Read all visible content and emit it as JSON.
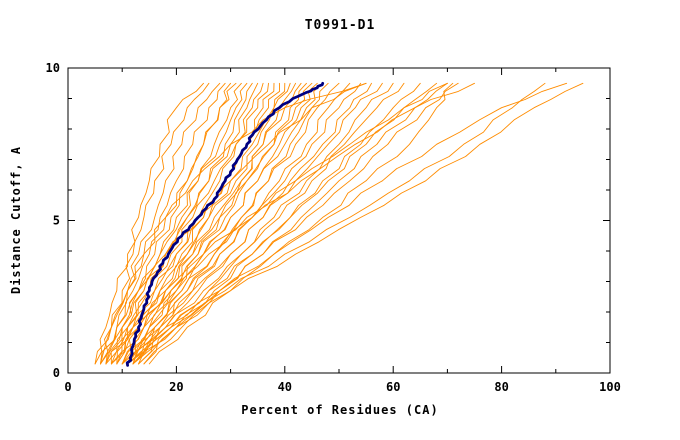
{
  "chart_data": {
    "type": "line",
    "title": "T0991-D1",
    "xlabel": "Percent of Residues (CA)",
    "ylabel": "Distance Cutoff, A",
    "xlim": [
      0,
      100
    ],
    "ylim": [
      0,
      10
    ],
    "x_ticks": [
      0,
      20,
      40,
      60,
      80,
      100
    ],
    "y_ticks": [
      0,
      5,
      10
    ],
    "x_minor_step": 10,
    "y_minor_step": 1,
    "grid": false,
    "legend": "none",
    "colors": {
      "predictions": "#ff8c00",
      "highlight": "#000080",
      "frame": "#000000"
    },
    "series_meaning": {
      "orange": "prediction cumulative GDT curves",
      "navy": "highlighted model curve"
    },
    "y_levels": [
      0.3,
      1.5,
      2.7,
      3.9,
      5.1,
      6.3,
      7.5,
      8.7,
      9.5
    ],
    "orange_series_x": [
      [
        6,
        8,
        10,
        12,
        14,
        16,
        19,
        22,
        26
      ],
      [
        7,
        9,
        11,
        13,
        16,
        18,
        21,
        24,
        28
      ],
      [
        5,
        8,
        11,
        14,
        17,
        20,
        23,
        26,
        29
      ],
      [
        8,
        10,
        13,
        16,
        19,
        22,
        25,
        28,
        30
      ],
      [
        6,
        9,
        12,
        15,
        18,
        22,
        25,
        28,
        31
      ],
      [
        9,
        11,
        14,
        17,
        20,
        24,
        27,
        30,
        32
      ],
      [
        7,
        10,
        13,
        17,
        21,
        24,
        28,
        31,
        33
      ],
      [
        8,
        11,
        15,
        18,
        22,
        26,
        29,
        32,
        34
      ],
      [
        6,
        10,
        14,
        18,
        22,
        26,
        30,
        33,
        35
      ],
      [
        9,
        12,
        16,
        20,
        24,
        28,
        31,
        34,
        36
      ],
      [
        7,
        11,
        15,
        19,
        23,
        27,
        31,
        35,
        37
      ],
      [
        10,
        13,
        17,
        21,
        25,
        29,
        33,
        36,
        38
      ],
      [
        8,
        12,
        16,
        20,
        25,
        29,
        33,
        37,
        39
      ],
      [
        11,
        14,
        18,
        22,
        26,
        30,
        34,
        38,
        40
      ],
      [
        9,
        13,
        17,
        22,
        26,
        31,
        35,
        38,
        41
      ],
      [
        12,
        15,
        19,
        23,
        28,
        32,
        36,
        39,
        42
      ],
      [
        10,
        14,
        18,
        23,
        27,
        32,
        36,
        40,
        43
      ],
      [
        11,
        15,
        20,
        24,
        29,
        33,
        38,
        41,
        44
      ],
      [
        9,
        14,
        19,
        24,
        28,
        33,
        38,
        42,
        45
      ],
      [
        12,
        16,
        21,
        25,
        30,
        35,
        39,
        43,
        46
      ],
      [
        10,
        15,
        20,
        25,
        30,
        35,
        40,
        44,
        47
      ],
      [
        13,
        17,
        22,
        27,
        32,
        37,
        41,
        45,
        48
      ],
      [
        11,
        16,
        21,
        27,
        32,
        37,
        42,
        46,
        50
      ],
      [
        12,
        17,
        23,
        28,
        34,
        39,
        44,
        48,
        52
      ],
      [
        10,
        16,
        22,
        28,
        34,
        40,
        45,
        50,
        54
      ],
      [
        13,
        18,
        24,
        30,
        36,
        41,
        47,
        52,
        56
      ],
      [
        11,
        17,
        23,
        30,
        36,
        42,
        48,
        53,
        58
      ],
      [
        14,
        19,
        26,
        32,
        38,
        44,
        50,
        55,
        60
      ],
      [
        12,
        18,
        25,
        32,
        39,
        45,
        51,
        57,
        62
      ],
      [
        13,
        20,
        27,
        34,
        41,
        47,
        54,
        60,
        65
      ],
      [
        11,
        19,
        26,
        34,
        41,
        48,
        55,
        62,
        68
      ],
      [
        14,
        21,
        28,
        36,
        43,
        50,
        57,
        64,
        70
      ],
      [
        12,
        20,
        28,
        36,
        44,
        52,
        59,
        66,
        72
      ],
      [
        6,
        9,
        13,
        18,
        24,
        30,
        37,
        45,
        55
      ],
      [
        7,
        12,
        18,
        25,
        33,
        42,
        52,
        62,
        70
      ],
      [
        15,
        22,
        30,
        38,
        47,
        55,
        63,
        68,
        71
      ],
      [
        10,
        18,
        28,
        38,
        48,
        58,
        68,
        80,
        92
      ],
      [
        12,
        20,
        30,
        42,
        54,
        66,
        76,
        86,
        95
      ],
      [
        11,
        19,
        29,
        40,
        52,
        63,
        73,
        82,
        88
      ],
      [
        5,
        7,
        9,
        11,
        13,
        15,
        17,
        20,
        25
      ],
      [
        6,
        8,
        11,
        14,
        18,
        23,
        30,
        40,
        55
      ],
      [
        8,
        13,
        19,
        26,
        34,
        43,
        53,
        64,
        75
      ]
    ],
    "highlight_series": [
      [
        11,
        0.25
      ],
      [
        11.5,
        0.5
      ],
      [
        12,
        0.9
      ],
      [
        12.5,
        1.2
      ],
      [
        13,
        1.5
      ],
      [
        13.5,
        1.8
      ],
      [
        14,
        2.1
      ],
      [
        14.5,
        2.4
      ],
      [
        15,
        2.7
      ],
      [
        15.5,
        3.0
      ],
      [
        16.5,
        3.3
      ],
      [
        17.5,
        3.6
      ],
      [
        18.5,
        3.9
      ],
      [
        19.5,
        4.2
      ],
      [
        21,
        4.5
      ],
      [
        22.5,
        4.8
      ],
      [
        24,
        5.1
      ],
      [
        25.5,
        5.4
      ],
      [
        27,
        5.7
      ],
      [
        28,
        6.0
      ],
      [
        29,
        6.3
      ],
      [
        30,
        6.6
      ],
      [
        31,
        6.9
      ],
      [
        32,
        7.2
      ],
      [
        33,
        7.5
      ],
      [
        34,
        7.8
      ],
      [
        35.5,
        8.1
      ],
      [
        37,
        8.4
      ],
      [
        39,
        8.7
      ],
      [
        41.5,
        9.0
      ],
      [
        44,
        9.2
      ],
      [
        46,
        9.35
      ],
      [
        47,
        9.5
      ]
    ]
  }
}
